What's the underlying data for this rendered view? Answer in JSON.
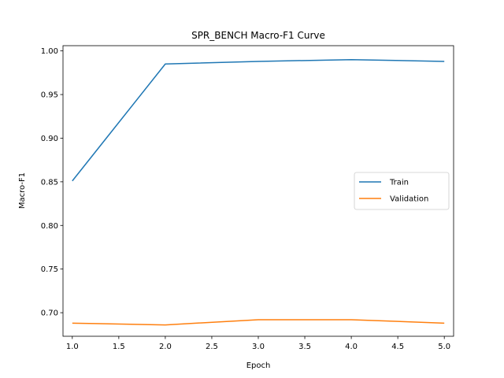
{
  "chart_data": {
    "type": "line",
    "title": "SPR_BENCH Macro-F1 Curve",
    "xlabel": "Epoch",
    "ylabel": "Macro-F1",
    "x": [
      1,
      2,
      3,
      4,
      5
    ],
    "xlim": [
      0.9,
      5.1
    ],
    "ylim": [
      0.673,
      1.006
    ],
    "xticks": [
      1.0,
      1.5,
      2.0,
      2.5,
      3.0,
      3.5,
      4.0,
      4.5,
      5.0
    ],
    "xtick_labels": [
      "1.0",
      "1.5",
      "2.0",
      "2.5",
      "3.0",
      "3.5",
      "4.0",
      "4.5",
      "5.0"
    ],
    "yticks": [
      0.7,
      0.75,
      0.8,
      0.85,
      0.9,
      0.95,
      1.0
    ],
    "ytick_labels": [
      "0.70",
      "0.75",
      "0.80",
      "0.85",
      "0.90",
      "0.95",
      "1.00"
    ],
    "grid": false,
    "legend_position": "center-right",
    "series": [
      {
        "name": "Train",
        "color": "#1f77b4",
        "values": [
          0.851,
          0.985,
          0.988,
          0.99,
          0.988
        ]
      },
      {
        "name": "Validation",
        "color": "#ff7f0e",
        "values": [
          0.688,
          0.686,
          0.692,
          0.692,
          0.688
        ]
      }
    ]
  }
}
